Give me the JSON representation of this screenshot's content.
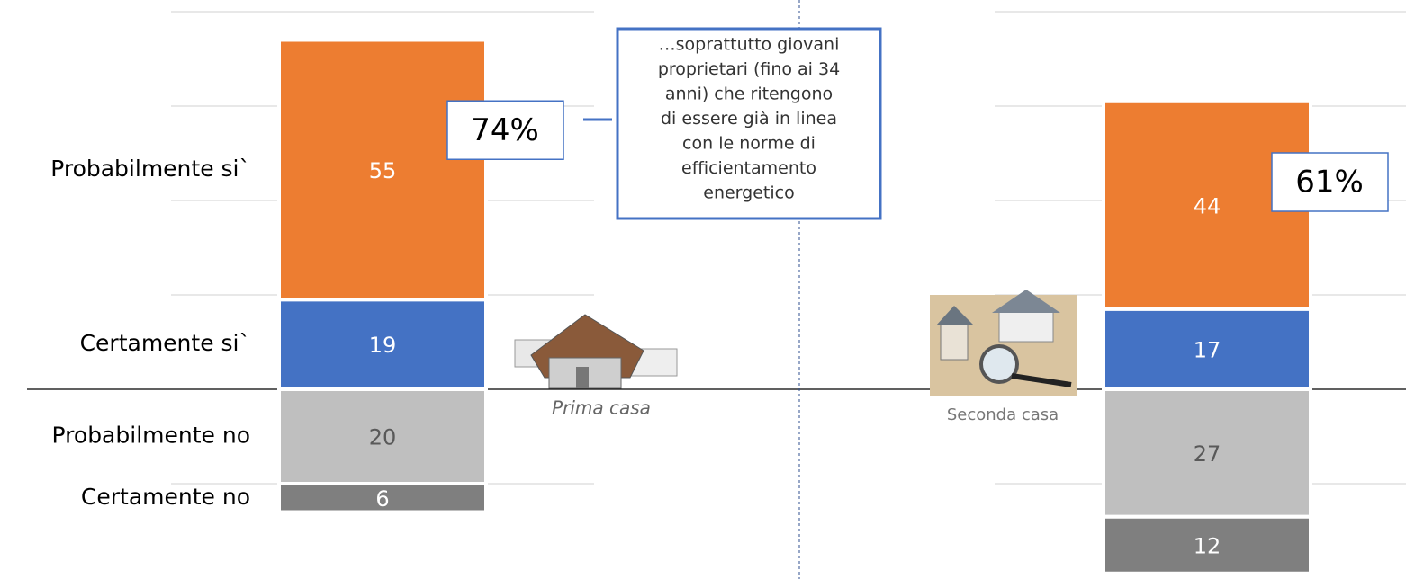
{
  "chart_data": {
    "type": "diverging-stacked-bar",
    "categories": [
      "Prima casa",
      "Seconda casa"
    ],
    "series": [
      {
        "name": "Certamente si`",
        "color": "#4472c4",
        "values": [
          19,
          17
        ]
      },
      {
        "name": "Probabilmente si`",
        "color": "#ed7d31",
        "values": [
          55,
          44
        ]
      },
      {
        "name": "Probabilmente no",
        "color": "#bfbfbf",
        "values": [
          -20,
          -27
        ],
        "value_labels": [
          "20",
          "27"
        ]
      },
      {
        "name": "Certamente no",
        "color": "#7f7f7f",
        "values": [
          -6,
          -12
        ],
        "value_labels": [
          "6",
          "12"
        ]
      }
    ],
    "totals": [
      74,
      61
    ],
    "total_labels": [
      "74%",
      "61%"
    ],
    "ylim": [
      -40,
      82
    ],
    "yticks": [
      -20,
      0,
      20,
      40,
      60,
      80
    ],
    "grid": true,
    "annotation": [
      "…soprattutto giovani",
      "proprietari (fino ai 34",
      "anni) che ritengono",
      "di essere già in linea",
      "con le norme di",
      "efficientamento",
      "energetico"
    ]
  }
}
